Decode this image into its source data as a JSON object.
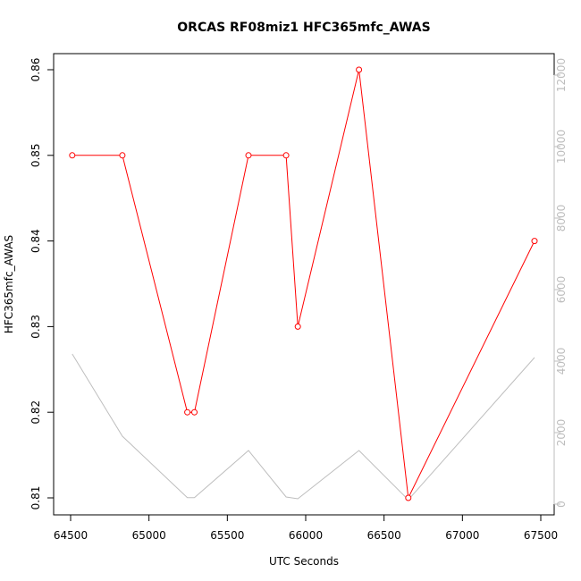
{
  "chart_data": {
    "type": "line",
    "title": "ORCAS RF08miz1 HFC365mfc_AWAS",
    "xlabel": "UTC Seconds",
    "ylabel": "HFC365mfc_AWAS",
    "xlim": [
      64500,
      67500
    ],
    "ylim": [
      0.81,
      0.86
    ],
    "y2lim": [
      0,
      12000
    ],
    "x_ticks": [
      "64500",
      "65000",
      "65500",
      "66000",
      "66500",
      "67000",
      "67500"
    ],
    "y_ticks": [
      "0.81",
      "0.82",
      "0.83",
      "0.84",
      "0.85",
      "0.86"
    ],
    "y2_ticks": [
      "0",
      "2000",
      "4000",
      "6000",
      "8000",
      "10000",
      "12000"
    ],
    "grid": false,
    "series": [
      {
        "axis": "left",
        "color": "#ff0000",
        "markers": true,
        "x": [
          64510,
          64830,
          65245,
          65290,
          65635,
          65875,
          65950,
          66340,
          66655,
          67460
        ],
        "y": [
          0.85,
          0.85,
          0.82,
          0.82,
          0.85,
          0.85,
          0.83,
          0.86,
          0.81,
          0.84
        ]
      },
      {
        "axis": "right",
        "color": "#bebebe",
        "markers": false,
        "x": [
          64510,
          64830,
          65245,
          65290,
          65635,
          65875,
          65950,
          66340,
          66655,
          67460
        ],
        "y": [
          4200,
          1900,
          180,
          180,
          1500,
          200,
          150,
          1500,
          120,
          4100
        ]
      }
    ]
  }
}
